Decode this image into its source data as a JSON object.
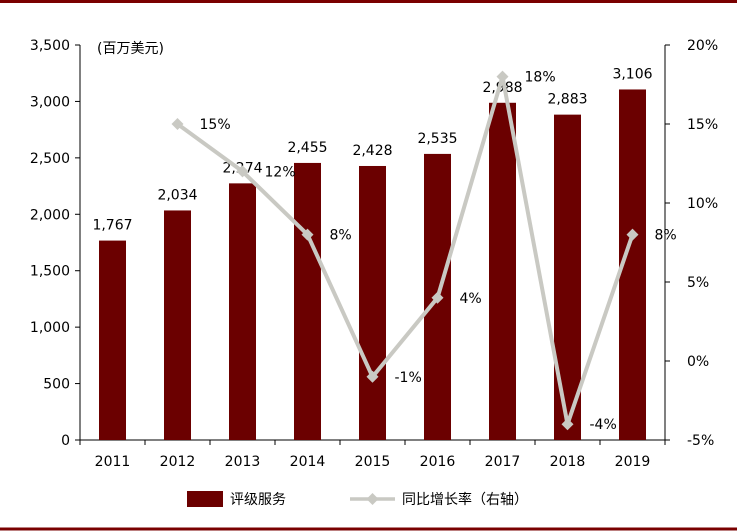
{
  "chart_data": {
    "type": "bar",
    "unit_label": "(百万美元)",
    "categories": [
      "2011",
      "2012",
      "2013",
      "2014",
      "2015",
      "2016",
      "2017",
      "2018",
      "2019"
    ],
    "series": [
      {
        "name": "评级服务",
        "type": "bar",
        "axis": "left",
        "color": "#6b0000",
        "values": [
          1767,
          2034,
          2274,
          2455,
          2428,
          2535,
          2988,
          2883,
          3106
        ],
        "labels": [
          "1,767",
          "2,034",
          "2,274",
          "2,455",
          "2,428",
          "2,535",
          "2,988",
          "2,883",
          "3,106"
        ]
      },
      {
        "name": "同比增长率（右轴）",
        "type": "line",
        "axis": "right",
        "color": "#c9c9c3",
        "values": [
          null,
          15,
          12,
          8,
          -1,
          4,
          18,
          -4,
          8
        ],
        "labels": [
          "",
          "15%",
          "12%",
          "8%",
          "-1%",
          "4%",
          "18%",
          "-4%",
          "8%"
        ]
      }
    ],
    "y_left": {
      "min": 0,
      "max": 3500,
      "ticks": [
        "0",
        "500",
        "1,000",
        "1,500",
        "2,000",
        "2,500",
        "3,000",
        "3,500"
      ]
    },
    "y_right": {
      "min": -5,
      "max": 20,
      "ticks": [
        "-5%",
        "0%",
        "5%",
        "10%",
        "15%",
        "20%"
      ]
    },
    "legend_position": "bottom",
    "grid": false,
    "frame_color": "#7a0000"
  }
}
